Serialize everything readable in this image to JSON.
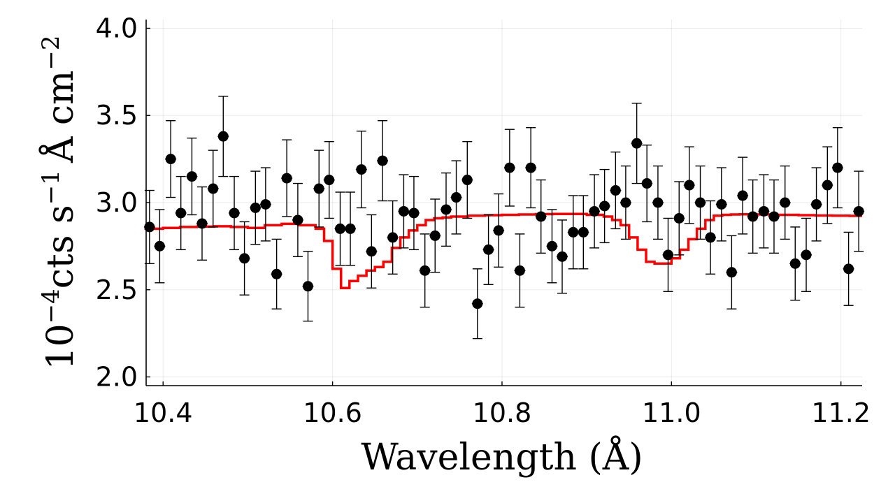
{
  "chart_data": {
    "type": "scatter",
    "xlabel": "Wavelength (Å)",
    "ylabel_parts": {
      "base": "10",
      "base_exp": "−4",
      "unit1": "cts s",
      "unit1_exp": "−1",
      "unit2": "Å cm",
      "unit2_exp": "−2"
    },
    "xlim": [
      10.38,
      11.225
    ],
    "ylim": [
      1.95,
      4.05
    ],
    "grid": true,
    "x_ticks": [
      10.4,
      10.6,
      10.8,
      11.0,
      11.2
    ],
    "x_tick_labels": [
      "10.4",
      "10.6",
      "10.8",
      "11.0",
      "11.2"
    ],
    "y_ticks": [
      2.0,
      2.5,
      3.0,
      3.5,
      4.0
    ],
    "y_tick_labels": [
      "2.0",
      "2.5",
      "3.0",
      "3.5",
      "4.0"
    ],
    "colors": {
      "data": "#000000",
      "model": "#ff0000"
    },
    "series": [
      {
        "kind": "data-with-errorbars",
        "points": [
          [
            10.384,
            2.86,
            0.21
          ],
          [
            10.396,
            2.75,
            0.21
          ],
          [
            10.409,
            3.25,
            0.22
          ],
          [
            10.421,
            2.94,
            0.21
          ],
          [
            10.434,
            3.15,
            0.22
          ],
          [
            10.446,
            2.88,
            0.21
          ],
          [
            10.459,
            3.08,
            0.22
          ],
          [
            10.471,
            3.38,
            0.23
          ],
          [
            10.484,
            2.94,
            0.21
          ],
          [
            10.496,
            2.68,
            0.21
          ],
          [
            10.509,
            2.97,
            0.21
          ],
          [
            10.521,
            2.99,
            0.21
          ],
          [
            10.534,
            2.59,
            0.2
          ],
          [
            10.546,
            3.14,
            0.22
          ],
          [
            10.559,
            2.9,
            0.21
          ],
          [
            10.571,
            2.52,
            0.2
          ],
          [
            10.584,
            3.08,
            0.22
          ],
          [
            10.596,
            3.13,
            0.22
          ],
          [
            10.609,
            2.85,
            0.21
          ],
          [
            10.621,
            2.85,
            0.21
          ],
          [
            10.634,
            3.19,
            0.22
          ],
          [
            10.646,
            2.72,
            0.21
          ],
          [
            10.659,
            3.24,
            0.23
          ],
          [
            10.671,
            2.8,
            0.21
          ],
          [
            10.684,
            2.95,
            0.21
          ],
          [
            10.696,
            2.94,
            0.21
          ],
          [
            10.709,
            2.61,
            0.21
          ],
          [
            10.721,
            2.81,
            0.21
          ],
          [
            10.734,
            2.96,
            0.21
          ],
          [
            10.746,
            3.03,
            0.21
          ],
          [
            10.759,
            3.13,
            0.22
          ],
          [
            10.771,
            2.42,
            0.2
          ],
          [
            10.784,
            2.73,
            0.2
          ],
          [
            10.796,
            2.84,
            0.21
          ],
          [
            10.809,
            3.2,
            0.22
          ],
          [
            10.821,
            2.61,
            0.21
          ],
          [
            10.834,
            3.2,
            0.23
          ],
          [
            10.846,
            2.92,
            0.21
          ],
          [
            10.859,
            2.75,
            0.21
          ],
          [
            10.871,
            2.69,
            0.21
          ],
          [
            10.884,
            2.83,
            0.21
          ],
          [
            10.896,
            2.83,
            0.21
          ],
          [
            10.909,
            2.95,
            0.21
          ],
          [
            10.921,
            2.98,
            0.21
          ],
          [
            10.934,
            3.07,
            0.22
          ],
          [
            10.946,
            3.0,
            0.21
          ],
          [
            10.959,
            3.34,
            0.23
          ],
          [
            10.971,
            3.11,
            0.22
          ],
          [
            10.984,
            3.0,
            0.21
          ],
          [
            10.996,
            2.7,
            0.21
          ],
          [
            11.009,
            2.91,
            0.21
          ],
          [
            11.021,
            3.1,
            0.22
          ],
          [
            11.034,
            3.0,
            0.21
          ],
          [
            11.046,
            2.8,
            0.21
          ],
          [
            11.059,
            2.99,
            0.21
          ],
          [
            11.071,
            2.6,
            0.21
          ],
          [
            11.084,
            3.04,
            0.22
          ],
          [
            11.096,
            2.92,
            0.21
          ],
          [
            11.109,
            2.95,
            0.21
          ],
          [
            11.121,
            2.92,
            0.21
          ],
          [
            11.134,
            3.0,
            0.21
          ],
          [
            11.146,
            2.65,
            0.21
          ],
          [
            11.159,
            2.7,
            0.21
          ],
          [
            11.171,
            2.99,
            0.21
          ],
          [
            11.184,
            3.1,
            0.22
          ],
          [
            11.196,
            3.2,
            0.23
          ],
          [
            11.209,
            2.62,
            0.21
          ],
          [
            11.221,
            2.95,
            0.23
          ]
        ]
      },
      {
        "kind": "model-step",
        "x": [
          10.378,
          10.39,
          10.4,
          10.41,
          10.42,
          10.43,
          10.44,
          10.45,
          10.46,
          10.47,
          10.48,
          10.49,
          10.5,
          10.51,
          10.52,
          10.53,
          10.54,
          10.55,
          10.56,
          10.57,
          10.58,
          10.59,
          10.6,
          10.61,
          10.62,
          10.63,
          10.64,
          10.65,
          10.66,
          10.67,
          10.68,
          10.69,
          10.7,
          10.71,
          10.72,
          10.73,
          10.74,
          10.75,
          10.76,
          10.77,
          10.78,
          10.79,
          10.8,
          10.81,
          10.82,
          10.83,
          10.84,
          10.85,
          10.86,
          10.87,
          10.88,
          10.89,
          10.9,
          10.91,
          10.92,
          10.93,
          10.94,
          10.95,
          10.96,
          10.97,
          10.98,
          10.99,
          11.0,
          11.01,
          11.02,
          11.03,
          11.04,
          11.05,
          11.06,
          11.07,
          11.08,
          11.09,
          11.1,
          11.11,
          11.12,
          11.13,
          11.14,
          11.15,
          11.16,
          11.17,
          11.18,
          11.19,
          11.2,
          11.21,
          11.225
        ],
        "y": [
          2.85,
          2.85,
          2.855,
          2.855,
          2.86,
          2.86,
          2.862,
          2.862,
          2.864,
          2.864,
          2.86,
          2.86,
          2.855,
          2.855,
          2.87,
          2.87,
          2.878,
          2.878,
          2.87,
          2.87,
          2.85,
          2.78,
          2.62,
          2.51,
          2.55,
          2.58,
          2.61,
          2.63,
          2.66,
          2.74,
          2.8,
          2.84,
          2.87,
          2.9,
          2.91,
          2.915,
          2.92,
          2.92,
          2.925,
          2.925,
          2.928,
          2.928,
          2.93,
          2.93,
          2.932,
          2.932,
          2.934,
          2.934,
          2.935,
          2.935,
          2.935,
          2.935,
          2.93,
          2.93,
          2.92,
          2.9,
          2.87,
          2.8,
          2.73,
          2.66,
          2.65,
          2.65,
          2.68,
          2.73,
          2.79,
          2.85,
          2.9,
          2.925,
          2.93,
          2.932,
          2.933,
          2.933,
          2.932,
          2.932,
          2.93,
          2.93,
          2.93,
          2.928,
          2.928,
          2.926,
          2.926,
          2.925,
          2.925,
          2.924,
          2.924
        ]
      }
    ]
  }
}
